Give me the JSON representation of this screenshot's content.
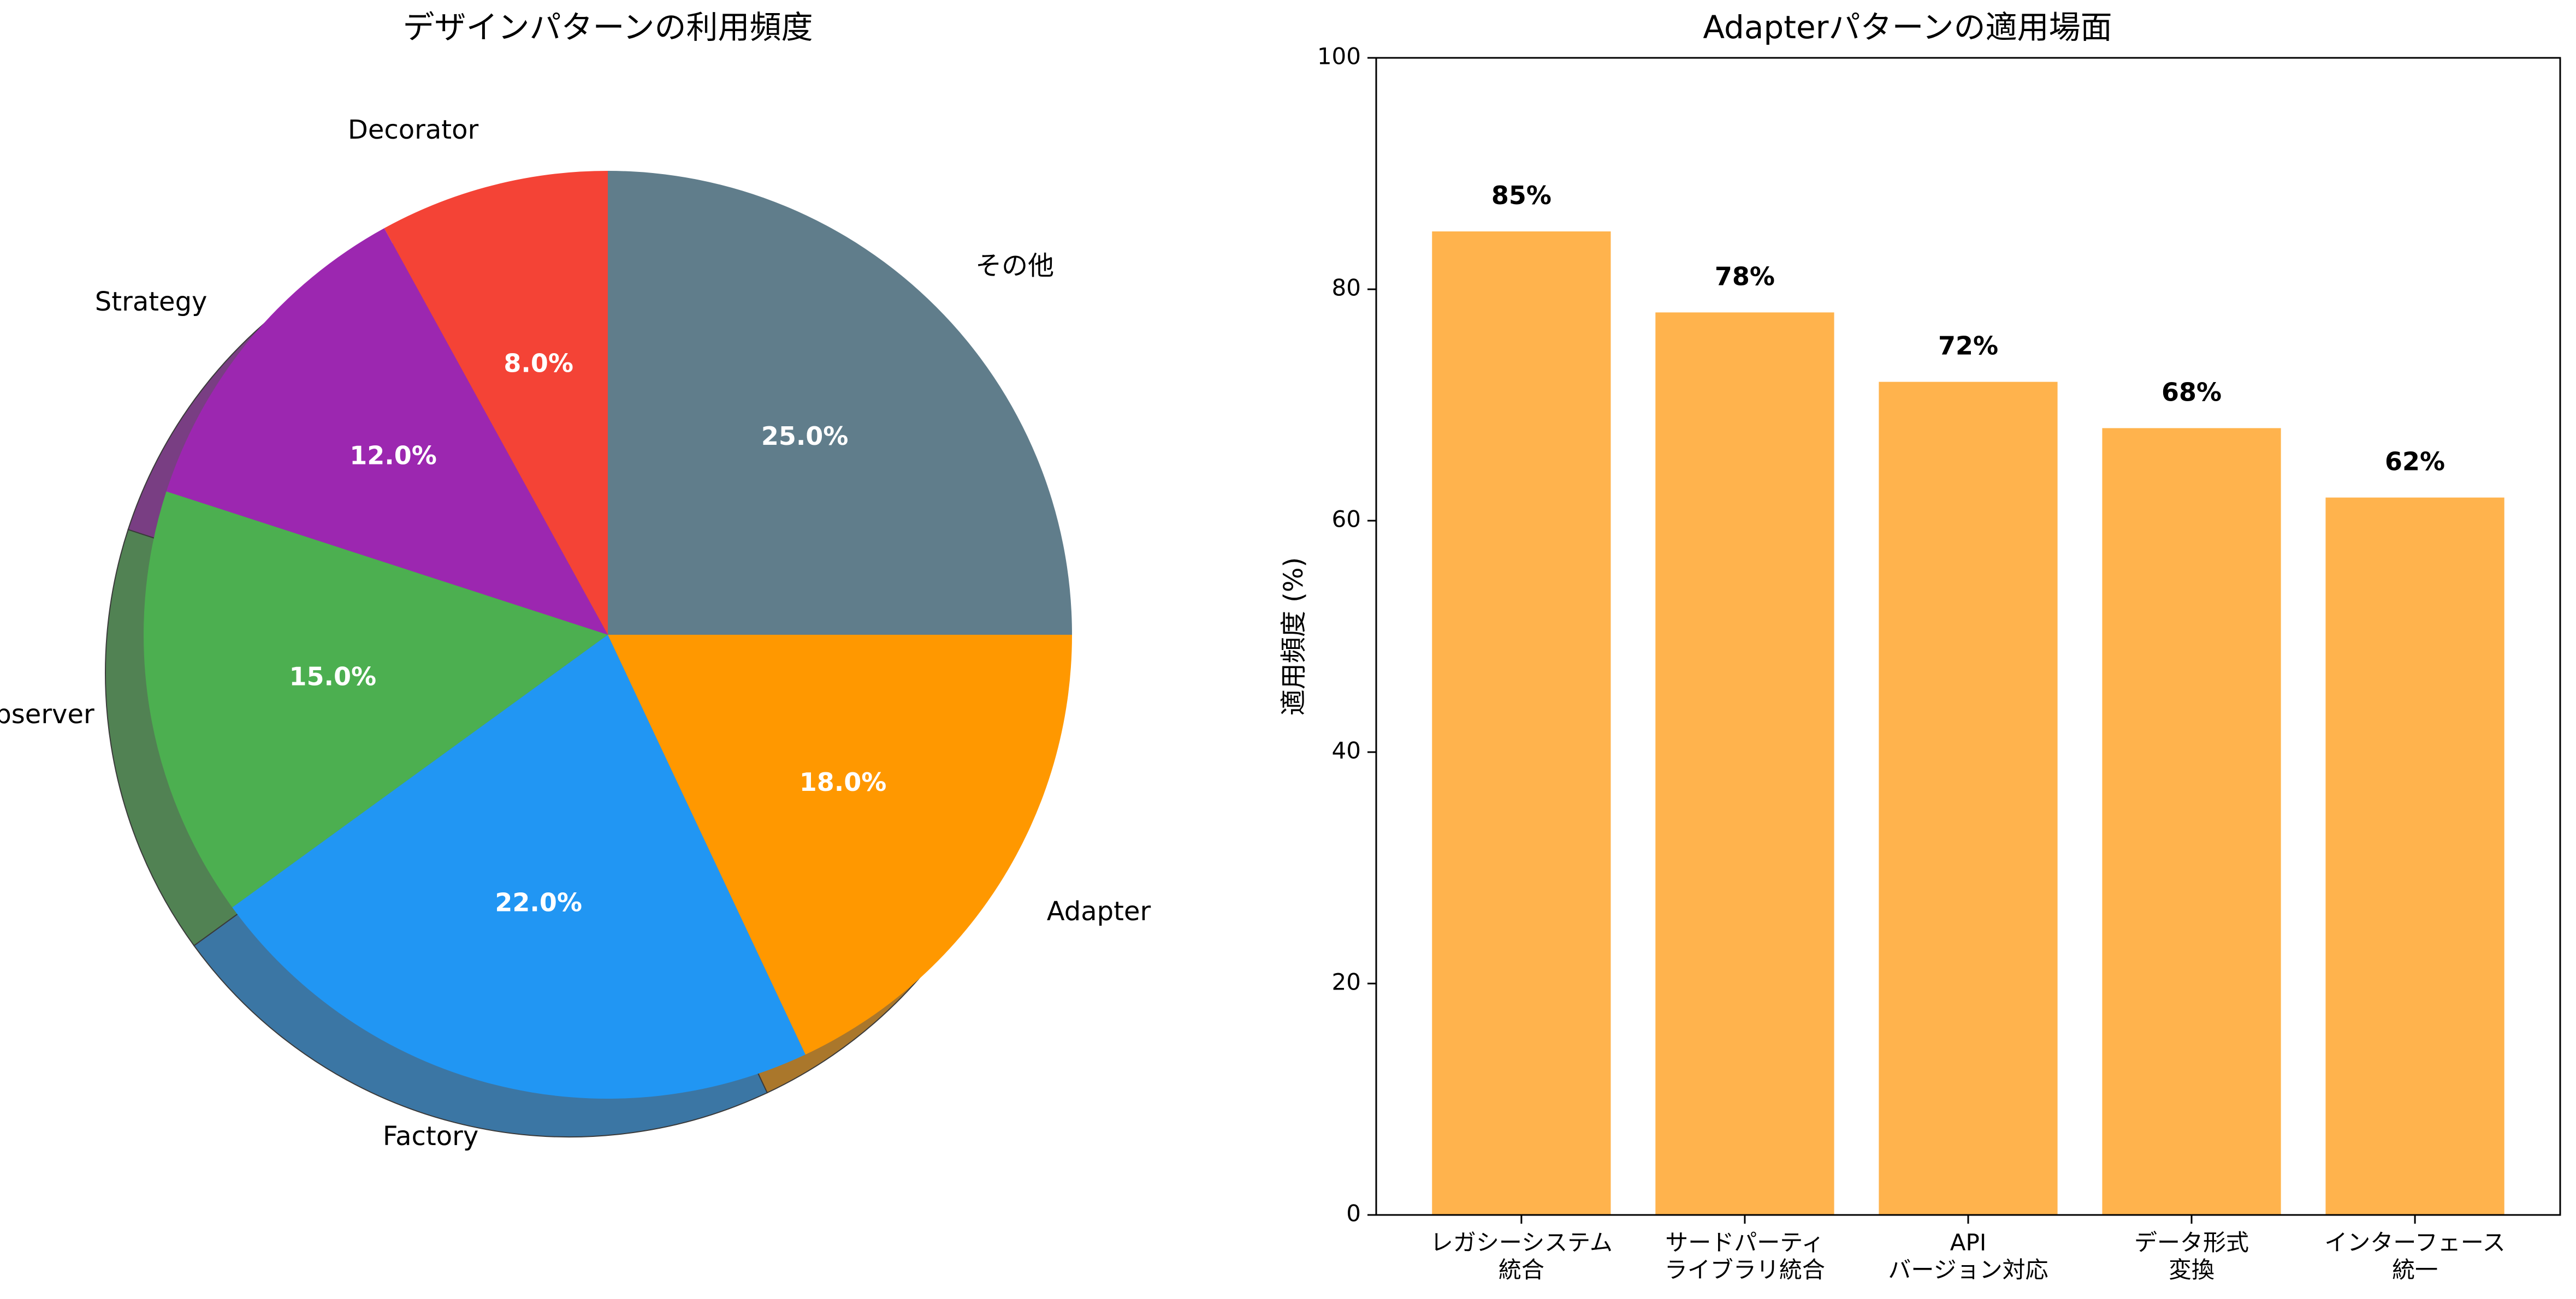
{
  "chart_data": [
    {
      "type": "pie",
      "title": "デザインパターンの利用頻度",
      "slices": [
        {
          "label": "その他",
          "value": 25.0,
          "pct_label": "25.0%",
          "color": "#607D8B"
        },
        {
          "label": "Decorator",
          "value": 8.0,
          "pct_label": "8.0%",
          "color": "#F44336"
        },
        {
          "label": "Strategy",
          "value": 12.0,
          "pct_label": "12.0%",
          "color": "#9C27B0"
        },
        {
          "label": "Observer",
          "value": 15.0,
          "pct_label": "15.0%",
          "color": "#4CAF50"
        },
        {
          "label": "Factory",
          "value": 22.0,
          "pct_label": "22.0%",
          "color": "#2196F3"
        },
        {
          "label": "Adapter",
          "value": 18.0,
          "pct_label": "18.0%",
          "color": "#FF9800"
        }
      ],
      "shadow": true
    },
    {
      "type": "bar",
      "title": "Adapterパターンの適用場面",
      "categories": [
        [
          "レガシーシステム",
          "統合"
        ],
        [
          "サードパーティ",
          "ライブラリ統合"
        ],
        [
          "API",
          "バージョン対応"
        ],
        [
          "データ形式",
          "変換"
        ],
        [
          "インターフェース",
          "統一"
        ]
      ],
      "values": [
        85,
        78,
        72,
        68,
        62
      ],
      "value_labels": [
        "85%",
        "78%",
        "72%",
        "68%",
        "62%"
      ],
      "ylabel": "適用頻度 (%)",
      "ylim": [
        0,
        100
      ],
      "yticks": [
        0,
        20,
        40,
        60,
        80,
        100
      ],
      "bar_color": "#FFB34D",
      "grid": false
    }
  ]
}
